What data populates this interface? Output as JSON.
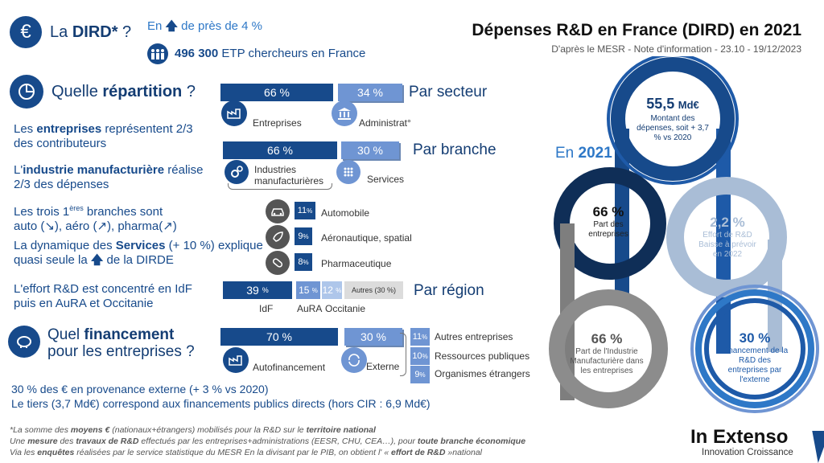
{
  "header": {
    "title": "Dépenses R&D en France (DIRD) en 2021",
    "subtitle": "D'après le MESR - Note d'information - 23.10 - 19/12/2023"
  },
  "dird": {
    "prefix": "La ",
    "keyword": "DIRD*",
    "suffix": " ?",
    "growth_prefix": "En",
    "growth_suffix": "de près de 4 %",
    "researchers_bold": "496 300",
    "researchers_rest": "ETP chercheurs en France"
  },
  "repartition": {
    "q_prefix": "Quelle ",
    "q_keyword": "répartition",
    "q_suffix": " ?",
    "sector": {
      "label": "Par secteur",
      "v1": "66 %",
      "v2": "34 %",
      "c1": "Entreprises",
      "c2": "Administrat°"
    },
    "sector_note_a": "Les ",
    "sector_note_kw": "entreprises",
    "sector_note_b": " représentent 2/3",
    "sector_note_c": "des contributeurs",
    "branch": {
      "label": "Par branche",
      "v1": "66 %",
      "v2": "30 %",
      "c1a": "Industries",
      "c1b": "manufacturières",
      "c2": "Services"
    },
    "branch_note_a": "L'",
    "branch_note_kw": "industrie manufacturière",
    "branch_note_b": " réalise",
    "branch_note_c": "2/3 des dépenses",
    "three_a": "Les trois 1",
    "three_sup": "ères",
    "three_b": " branches sont",
    "three_c": "auto (↘), aéro (↗), pharma(↗)",
    "services_a": "La dynamique des ",
    "services_kw": "Services",
    "services_b": " (+ 10 %) explique",
    "services_c": "quasi seule la",
    "services_d": "de la DIRDE",
    "branches": [
      {
        "pct": "11",
        "unit": "%",
        "label": "Automobile"
      },
      {
        "pct": "9",
        "unit": "%",
        "label": "Aéronautique, spatial"
      },
      {
        "pct": "8",
        "unit": "%",
        "label": "Pharmaceutique"
      }
    ],
    "region_note_a": "L'effort R&D est concentré en IdF",
    "region_note_b": "puis en AuRA et Occitanie",
    "region": {
      "label": "Par région",
      "v1": "39",
      "v2": "15",
      "v3": "12",
      "unit": "%",
      "v4": "Autres (30 %)",
      "c1": "IdF",
      "c2": "AuRA",
      "c3": "Occitanie"
    }
  },
  "financement": {
    "q_a": "Quel ",
    "q_kw": "financement",
    "q_b": "pour les entreprises ?",
    "v1": "70 %",
    "v2": "30 %",
    "c1": "Autofinancement",
    "c2": "Externe",
    "sources": [
      {
        "pct": "11",
        "unit": "%",
        "label": "Autres entreprises"
      },
      {
        "pct": "10",
        "unit": "%",
        "label": "Ressources publiques"
      },
      {
        "pct": "9",
        "unit": "%",
        "label": "Organismes étrangers"
      }
    ],
    "note1": "30 % des € en provenance externe (+ 3 % vs 2020)",
    "note2": "Le tiers (3,7 Md€) correspond aux financements publics directs (hors CIR : 6,9 Md€)"
  },
  "footnote": {
    "l1a": "*La somme des ",
    "l1b": "moyens €",
    "l1c": " (nationaux+étrangers) mobilisés pour la R&D sur le ",
    "l1d": "territoire national",
    "l2a": "Une ",
    "l2b": "mesure",
    "l2c": " des ",
    "l2d": "travaux de R&D",
    "l2e": " effectués par les entreprises+administrations (EESR, CHU, CEA…), pour ",
    "l2f": "toute branche économique",
    "l3a": "Via les ",
    "l3b": "enquêtes",
    "l3c": " réalisées par le service statistique du MESR    En la divisant par le PIB, on obtient l' « ",
    "l3d": "effort de R&D",
    "l3e": " »national"
  },
  "year_label": {
    "prefix": "En ",
    "year": "2021",
    "suffix": " :"
  },
  "circles": {
    "top": {
      "value": "55,5",
      "unit": "Md€",
      "text": "Montant des dépenses, soit + 3,7 % vs 2020"
    },
    "mid_left": {
      "value": "66 %",
      "text": "Part des entreprises"
    },
    "mid_right": {
      "value": "2,2 %",
      "text": "Effort de R&D Baisse à prévoir en 2022"
    },
    "bot_left": {
      "value": "66 %",
      "text": "Part de l'Industrie Manufacturière dans les entreprises"
    },
    "bot_right": {
      "value": "30 %",
      "text": "Financement de la R&D des entreprises par l'externe"
    }
  },
  "brand": {
    "name": "In Extenso",
    "tagline": "Innovation Croissance"
  },
  "colors": {
    "navy": "#143d73",
    "dark_bar": "#174a8b",
    "mid_bar": "#6f95d3",
    "light_bar": "#aec6ea",
    "grey_ring": "#8c8c8c",
    "pale_ring": "#a9bdd6"
  }
}
